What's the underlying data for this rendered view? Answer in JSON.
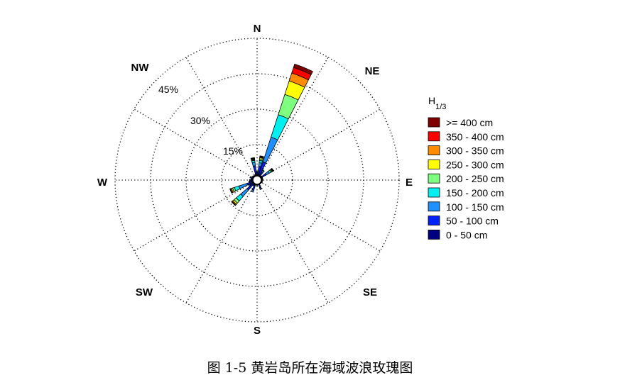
{
  "caption": "图 1-5  黄岩岛所在海域波浪玫瑰图",
  "chart_data": {
    "type": "wind-rose",
    "directions": [
      "N",
      "NE",
      "E",
      "SE",
      "S",
      "SW",
      "W",
      "NW"
    ],
    "radial_ticks": [
      15,
      30,
      45
    ],
    "radial_tick_labels": [
      "15%",
      "30%",
      "45%"
    ],
    "radial_max": 60,
    "legend_title": "H",
    "legend_title_sub": "1/3",
    "bins": [
      "0 - 50 cm",
      "50 - 100 cm",
      "100 - 150 cm",
      "150 - 200 cm",
      "200 - 250 cm",
      "250 - 300 cm",
      "300 - 350 cm",
      "350 - 400 cm",
      ">= 400 cm"
    ],
    "colors": [
      "#00007f",
      "#0022ff",
      "#1e90ff",
      "#00f0f0",
      "#7fff7f",
      "#ffff00",
      "#ff8c00",
      "#ff0000",
      "#7f0000"
    ],
    "sectors": [
      {
        "angle": 0,
        "values": [
          0.5,
          0.8,
          0.4,
          0.2,
          0,
          0,
          0,
          0,
          0
        ]
      },
      {
        "angle": 11.25,
        "values": [
          0.6,
          3.5,
          1.5,
          1.0,
          0.5,
          0.6,
          0.3,
          0.3,
          0.2
        ]
      },
      {
        "angle": 22.5,
        "values": [
          0.8,
          5.5,
          11.0,
          10.0,
          9.0,
          6.0,
          3.5,
          2.5,
          1.5
        ]
      },
      {
        "angle": 33.75,
        "values": [
          0.5,
          1.5,
          0.8,
          0.3,
          0,
          0,
          0,
          0,
          0
        ]
      },
      {
        "angle": 45,
        "values": [
          0.4,
          0.3,
          0,
          0,
          0,
          0,
          0,
          0,
          0
        ]
      },
      {
        "angle": 56.25,
        "values": [
          0.5,
          2.2,
          1.5,
          0.8,
          0.4,
          0.3,
          0.2,
          0.2,
          0.1
        ]
      },
      {
        "angle": 67.5,
        "values": [
          0.4,
          0.3,
          0,
          0,
          0,
          0,
          0,
          0,
          0
        ]
      },
      {
        "angle": 78.75,
        "values": [
          0.4,
          0.2,
          0,
          0,
          0,
          0,
          0,
          0,
          0
        ]
      },
      {
        "angle": 90,
        "values": [
          0.4,
          0.2,
          0,
          0,
          0,
          0,
          0,
          0,
          0
        ]
      },
      {
        "angle": 101.25,
        "values": [
          0.4,
          0,
          0,
          0,
          0,
          0,
          0,
          0,
          0
        ]
      },
      {
        "angle": 112.5,
        "values": [
          0.4,
          0.2,
          0,
          0,
          0,
          0,
          0,
          0,
          0
        ]
      },
      {
        "angle": 123.75,
        "values": [
          0.3,
          0,
          0,
          0,
          0,
          0,
          0,
          0,
          0
        ]
      },
      {
        "angle": 135,
        "values": [
          0.3,
          0,
          0,
          0,
          0,
          0,
          0,
          0,
          0
        ]
      },
      {
        "angle": 146.25,
        "values": [
          0.3,
          0,
          0,
          0,
          0,
          0,
          0,
          0,
          0
        ]
      },
      {
        "angle": 157.5,
        "values": [
          0.5,
          1.2,
          0.5,
          0.2,
          0,
          0,
          0,
          0,
          0
        ]
      },
      {
        "angle": 168.75,
        "values": [
          0.3,
          0,
          0,
          0,
          0,
          0,
          0,
          0,
          0
        ]
      },
      {
        "angle": 180,
        "values": [
          0.4,
          0.2,
          0,
          0,
          0,
          0,
          0,
          0,
          0
        ]
      },
      {
        "angle": 191.25,
        "values": [
          0.3,
          0,
          0,
          0,
          0,
          0,
          0,
          0,
          0
        ]
      },
      {
        "angle": 202.5,
        "values": [
          0.8,
          2.0,
          0.8,
          0,
          0,
          0,
          0,
          0,
          0
        ]
      },
      {
        "angle": 213.75,
        "values": [
          0.5,
          0.6,
          0,
          0,
          0,
          0,
          0,
          0,
          0
        ]
      },
      {
        "angle": 225,
        "values": [
          0.8,
          3.0,
          3.5,
          2.5,
          1.2,
          0.7,
          0.4,
          0.2,
          0.1
        ]
      },
      {
        "angle": 236.25,
        "values": [
          0.6,
          1.2,
          0.6,
          0,
          0,
          0,
          0,
          0,
          0
        ]
      },
      {
        "angle": 247.5,
        "values": [
          0.8,
          2.0,
          3.5,
          2.0,
          0.8,
          0.5,
          0.4,
          0.2,
          0.1
        ]
      },
      {
        "angle": 258.75,
        "values": [
          0.6,
          0.8,
          0.3,
          0,
          0,
          0,
          0,
          0,
          0
        ]
      },
      {
        "angle": 270,
        "values": [
          0.6,
          0.8,
          0,
          0,
          0,
          0,
          0,
          0,
          0
        ]
      },
      {
        "angle": 281.25,
        "values": [
          0.5,
          0.3,
          0,
          0,
          0,
          0,
          0,
          0,
          0
        ]
      },
      {
        "angle": 292.5,
        "values": [
          0.6,
          0.8,
          0,
          0,
          0,
          0,
          0,
          0,
          0
        ]
      },
      {
        "angle": 303.75,
        "values": [
          0.4,
          0.2,
          0,
          0,
          0,
          0,
          0,
          0,
          0
        ]
      },
      {
        "angle": 315,
        "values": [
          0.4,
          0.3,
          0,
          0,
          0,
          0,
          0,
          0,
          0
        ]
      },
      {
        "angle": 326.25,
        "values": [
          0.4,
          0,
          0,
          0,
          0,
          0,
          0,
          0,
          0
        ]
      },
      {
        "angle": 337.5,
        "values": [
          0.4,
          0.2,
          0,
          0,
          0,
          0,
          0,
          0,
          0
        ]
      },
      {
        "angle": 348.75,
        "values": [
          0.8,
          3.5,
          1.5,
          0.8,
          0.3,
          0.3,
          0.2,
          0.2,
          0.2
        ]
      }
    ]
  }
}
